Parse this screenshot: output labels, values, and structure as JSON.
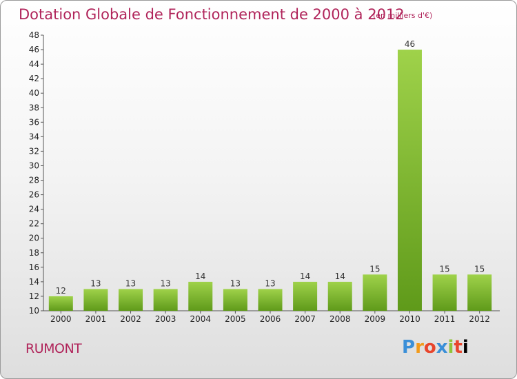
{
  "header": {
    "title": "Dotation Globale de Fonctionnement de 2000 à 2012",
    "subtitle": "(en milliers d'€)"
  },
  "footer": {
    "commune": "RUMONT",
    "logo": [
      "P",
      "r",
      "o",
      "x",
      "i",
      "t",
      "i"
    ]
  },
  "colors": {
    "title": "#b0245a",
    "bar_light": "#9fd24a",
    "bar_dark": "#5f9a1a"
  },
  "chart_data": {
    "type": "bar",
    "categories": [
      "2000",
      "2001",
      "2002",
      "2003",
      "2004",
      "2005",
      "2006",
      "2007",
      "2008",
      "2009",
      "2010",
      "2011",
      "2012"
    ],
    "values": [
      12,
      13,
      13,
      13,
      14,
      13,
      13,
      14,
      14,
      15,
      46,
      15,
      15
    ],
    "ylim": [
      10,
      48
    ],
    "yticks": [
      10,
      12,
      14,
      16,
      18,
      20,
      22,
      24,
      26,
      28,
      30,
      32,
      34,
      36,
      38,
      40,
      42,
      44,
      46,
      48
    ],
    "grid": false,
    "xlabel": "",
    "ylabel": ""
  }
}
